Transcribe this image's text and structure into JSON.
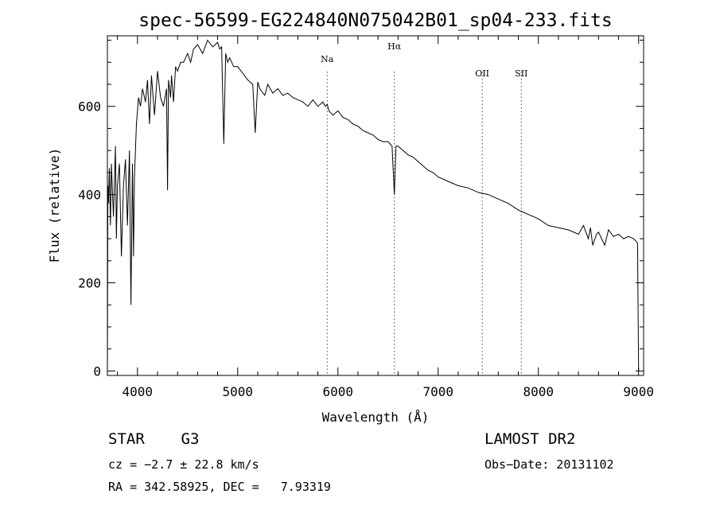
{
  "chart_data": {
    "type": "line",
    "title": "spec-56599-EG224840N075042B01_sp04-233.fits",
    "xlabel": "Wavelength (Å)",
    "ylabel": "Flux (relative)",
    "xlim": [
      3700,
      9050
    ],
    "ylim": [
      -10,
      760
    ],
    "x_ticks": [
      4000,
      5000,
      6000,
      7000,
      8000,
      9000
    ],
    "y_ticks": [
      0,
      200,
      400,
      600
    ],
    "x_tick_labels": [
      "4000",
      "5000",
      "6000",
      "7000",
      "8000",
      "9000"
    ],
    "y_tick_labels": [
      "0",
      "200",
      "400",
      "600"
    ],
    "series": [
      {
        "x": [
          3700,
          3705,
          3710,
          3720,
          3730,
          3740,
          3760,
          3780,
          3790,
          3800,
          3820,
          3840,
          3860,
          3880,
          3900,
          3920,
          3935,
          3950,
          3960,
          3970,
          3990,
          4000,
          4010,
          4030,
          4050,
          4080,
          4100,
          4120,
          4140,
          4170,
          4200,
          4230,
          4260,
          4290,
          4300,
          4310,
          4330,
          4340,
          4360,
          4380,
          4400,
          4430,
          4460,
          4500,
          4530,
          4560,
          4600,
          4650,
          4700,
          4750,
          4800,
          4820,
          4840,
          4861,
          4880,
          4900,
          4920,
          4960,
          5000,
          5050,
          5100,
          5150,
          5175,
          5200,
          5220,
          5270,
          5300,
          5350,
          5400,
          5450,
          5500,
          5550,
          5600,
          5650,
          5700,
          5750,
          5800,
          5850,
          5875,
          5893,
          5910,
          5950,
          6000,
          6050,
          6100,
          6150,
          6200,
          6250,
          6300,
          6350,
          6400,
          6450,
          6500,
          6540,
          6563,
          6580,
          6600,
          6650,
          6700,
          6750,
          6800,
          6850,
          6900,
          6950,
          7000,
          7100,
          7200,
          7300,
          7400,
          7500,
          7600,
          7700,
          7800,
          7900,
          8000,
          8100,
          8200,
          8300,
          8400,
          8450,
          8498,
          8520,
          8542,
          8580,
          8600,
          8662,
          8700,
          8750,
          8800,
          8850,
          8900,
          8950,
          8990,
          9000,
          9005
        ],
        "y": [
          0,
          420,
          380,
          460,
          330,
          470,
          350,
          510,
          300,
          420,
          470,
          260,
          420,
          480,
          330,
          500,
          150,
          470,
          260,
          440,
          560,
          590,
          620,
          600,
          640,
          610,
          660,
          560,
          670,
          580,
          680,
          620,
          600,
          640,
          410,
          660,
          620,
          670,
          610,
          690,
          680,
          700,
          700,
          720,
          700,
          730,
          740,
          720,
          750,
          735,
          745,
          730,
          735,
          515,
          720,
          700,
          710,
          690,
          690,
          675,
          660,
          650,
          540,
          655,
          640,
          625,
          650,
          630,
          640,
          625,
          630,
          620,
          615,
          610,
          600,
          615,
          600,
          610,
          600,
          605,
          590,
          580,
          590,
          575,
          570,
          560,
          555,
          545,
          540,
          535,
          525,
          520,
          520,
          510,
          400,
          510,
          510,
          500,
          490,
          485,
          475,
          465,
          455,
          450,
          440,
          430,
          420,
          415,
          405,
          400,
          390,
          380,
          365,
          355,
          345,
          330,
          325,
          320,
          310,
          330,
          300,
          325,
          285,
          310,
          315,
          285,
          320,
          305,
          310,
          300,
          305,
          300,
          290,
          0,
          0
        ]
      }
    ],
    "annotations": {
      "lines": [
        {
          "label": "Na",
          "x": 5893
        },
        {
          "label": "Hα",
          "x": 6563
        },
        {
          "label": "OII",
          "x": 7440
        },
        {
          "label": "SII",
          "x": 7830
        }
      ]
    }
  },
  "info": {
    "object": "STAR    G3",
    "cz": "cz = −2.7 ± 22.8 km/s",
    "radec": "RA = 342.58925, DEC =   7.93319",
    "survey": "LAMOST DR2",
    "obsdate": "Obs−Date: 20131102"
  }
}
